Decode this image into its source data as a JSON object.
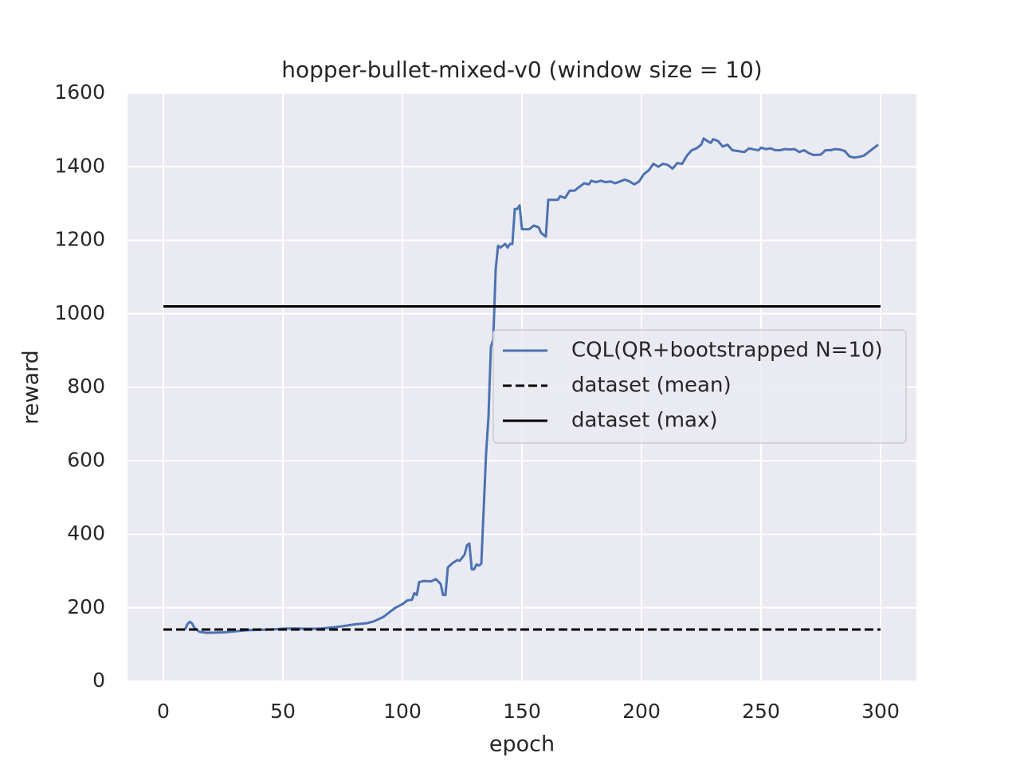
{
  "chart_data": {
    "type": "line",
    "title": "hopper-bullet-mixed-v0 (window size = 10)",
    "x_label": "epoch",
    "y_label": "reward",
    "xlim": [
      -15,
      315
    ],
    "ylim": [
      0,
      1600
    ],
    "xticks": [
      0,
      50,
      100,
      150,
      200,
      250,
      300
    ],
    "yticks": [
      0,
      200,
      400,
      600,
      800,
      1000,
      1200,
      1400,
      1600
    ],
    "grid": true,
    "legend": "center right",
    "series": [
      {
        "name": "CQL(QR+bootstrapped N=10)",
        "color": "#4c72b0",
        "linestyle": "solid",
        "x": [
          9,
          10,
          11,
          12,
          13,
          15,
          18,
          25,
          30,
          35,
          40,
          45,
          50,
          55,
          60,
          65,
          70,
          75,
          80,
          85,
          88,
          92,
          95,
          97,
          100,
          102,
          104,
          105,
          106,
          107,
          109,
          112,
          114,
          116,
          117,
          118,
          119,
          121,
          123,
          124,
          126,
          127,
          128,
          129,
          130,
          131,
          132,
          133,
          135,
          136,
          137,
          138,
          139,
          140,
          141,
          142,
          143,
          144,
          145,
          146,
          147,
          148,
          149,
          150,
          152,
          153,
          155,
          157,
          158,
          160,
          161,
          163,
          165,
          166,
          168,
          170,
          172,
          174,
          176,
          178,
          179,
          181,
          183,
          185,
          187,
          189,
          191,
          193,
          195,
          197,
          199,
          201,
          203,
          205,
          207,
          209,
          211,
          213,
          215,
          217,
          219,
          221,
          223,
          225,
          226,
          228,
          229,
          230,
          232,
          234,
          236,
          238,
          241,
          243,
          245,
          247,
          249,
          250,
          252,
          254,
          256,
          258,
          260,
          262,
          264,
          266,
          268,
          270,
          272,
          275,
          277,
          279,
          281,
          283,
          285,
          287,
          289,
          291,
          293,
          295,
          297,
          299
        ],
        "values": [
          140,
          155,
          162,
          158,
          145,
          135,
          132,
          133,
          136,
          139,
          140,
          141,
          143,
          144,
          143,
          143,
          146,
          150,
          155,
          158,
          163,
          175,
          190,
          200,
          210,
          220,
          222,
          240,
          235,
          270,
          273,
          272,
          278,
          265,
          235,
          235,
          310,
          322,
          330,
          328,
          345,
          370,
          375,
          305,
          305,
          318,
          315,
          320,
          620,
          720,
          910,
          930,
          1120,
          1185,
          1180,
          1185,
          1190,
          1180,
          1190,
          1190,
          1285,
          1285,
          1295,
          1230,
          1230,
          1230,
          1240,
          1235,
          1220,
          1210,
          1310,
          1310,
          1310,
          1320,
          1315,
          1335,
          1335,
          1345,
          1355,
          1352,
          1362,
          1358,
          1362,
          1358,
          1360,
          1355,
          1360,
          1365,
          1360,
          1352,
          1360,
          1380,
          1390,
          1408,
          1400,
          1408,
          1405,
          1395,
          1410,
          1408,
          1430,
          1445,
          1450,
          1460,
          1477,
          1468,
          1465,
          1475,
          1470,
          1455,
          1460,
          1445,
          1442,
          1440,
          1450,
          1447,
          1445,
          1452,
          1448,
          1450,
          1445,
          1445,
          1448,
          1447,
          1448,
          1440,
          1445,
          1437,
          1432,
          1433,
          1445,
          1445,
          1448,
          1447,
          1443,
          1428,
          1425,
          1427,
          1430,
          1440,
          1450,
          1460
        ]
      },
      {
        "name": "dataset (mean)",
        "color": "#000000",
        "linestyle": "dashed",
        "x": [
          0,
          300
        ],
        "values": [
          141,
          141
        ]
      },
      {
        "name": "dataset (max)",
        "color": "#000000",
        "linestyle": "solid",
        "x": [
          0,
          300
        ],
        "values": [
          1020,
          1020
        ]
      }
    ]
  }
}
